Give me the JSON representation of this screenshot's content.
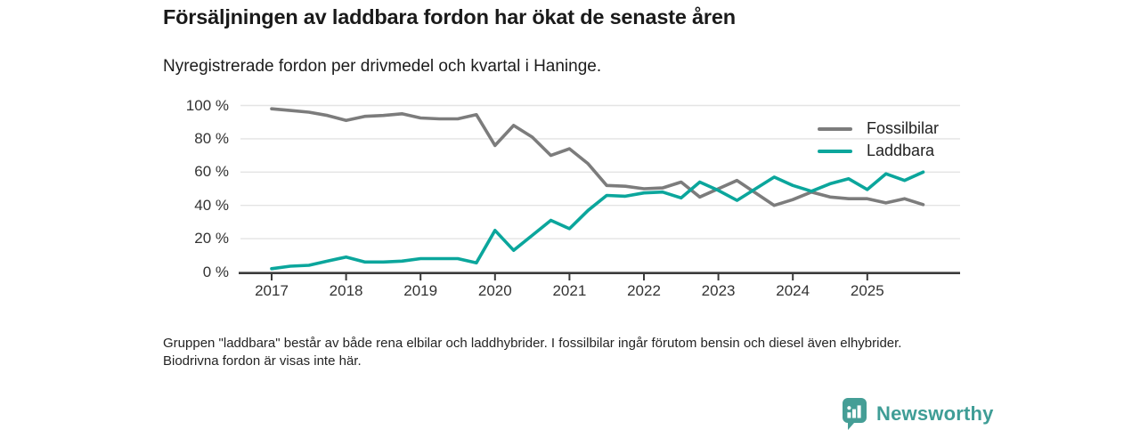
{
  "title": "Försäljningen av laddbara fordon har ökat de senaste åren",
  "subtitle": "Nyregistrerade fordon per drivmedel och kvartal i Haninge.",
  "footnote": "Gruppen \"laddbara\" består av både rena elbilar och laddhybrider. I fossilbilar ingår förutom bensin och diesel även elhybrider. Biodrivna fordon är visas inte här.",
  "logo": {
    "text": "Newsworthy",
    "color": "#3f9d96",
    "icon": "bar-chart-speech-bubble"
  },
  "chart_data": {
    "type": "line",
    "title": "Försäljningen av laddbara fordon har ökat de senaste åren",
    "subtitle": "Nyregistrerade fordon per drivmedel och kvartal i Haninge.",
    "x_unit": "quarter",
    "x_start": "2017-Q1",
    "x_end": "2025-Q4",
    "points_per_year": 4,
    "x_tick_labels": [
      "2017",
      "2018",
      "2019",
      "2020",
      "2021",
      "2022",
      "2023",
      "2024",
      "2025"
    ],
    "y_ticks": [
      0,
      20,
      40,
      60,
      80,
      100
    ],
    "y_tick_labels": [
      "0 %",
      "20 %",
      "40 %",
      "60 %",
      "80 %",
      "100 %"
    ],
    "ylim": [
      0,
      100
    ],
    "grid": "horizontal",
    "legend_position": "top-right",
    "series": [
      {
        "name": "Fossilbilar",
        "color": "#7c7c7c",
        "values": [
          98,
          97,
          96,
          94,
          91,
          93.5,
          94,
          95,
          92.5,
          92,
          92,
          94.5,
          76,
          88,
          81,
          70,
          74,
          65,
          52,
          51.5,
          50,
          50.5,
          54,
          45,
          50,
          55,
          47.5,
          40,
          43.5,
          48,
          45,
          44,
          44,
          41.5,
          44,
          40.5
        ]
      },
      {
        "name": "Laddbara",
        "color": "#0ba69c",
        "values": [
          2,
          3.5,
          4,
          6.5,
          9,
          6,
          6,
          6.5,
          8,
          8,
          8,
          5.5,
          25,
          13,
          22,
          31,
          26,
          37,
          46,
          45.5,
          47.5,
          48,
          44.5,
          54,
          49,
          43,
          50,
          57,
          52,
          48.5,
          53,
          56,
          49.5,
          59,
          55,
          60
        ]
      }
    ]
  }
}
